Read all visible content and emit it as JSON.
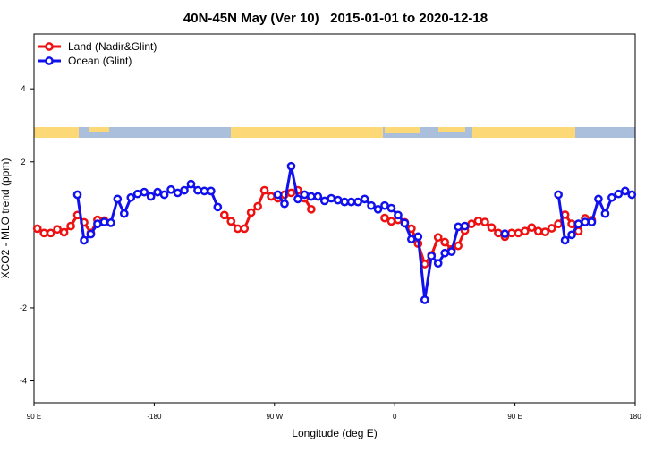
{
  "chart_data": {
    "type": "line",
    "title": "40N-45N May (Ver 10)   2015-01-01 to 2020-12-18",
    "x_label": "Longitude (deg E)",
    "y_label": "XCO2 - MLO trend (ppm)",
    "x": [
      -267.5,
      -262.5,
      -257.5,
      -252.5,
      -247.5,
      -242.5,
      -237.5,
      -232.5,
      -227.5,
      -222.5,
      -217.5,
      -212.5,
      -207.5,
      -202.5,
      -197.5,
      -192.5,
      -187.5,
      -182.5,
      -177.5,
      -172.5,
      -167.5,
      -162.5,
      -157.5,
      -152.5,
      -147.5,
      -142.5,
      -137.5,
      -132.5,
      -127.5,
      -122.5,
      -117.5,
      -112.5,
      -107.5,
      -102.5,
      -97.5,
      -92.5,
      -87.5,
      -82.5,
      -77.5,
      -72.5,
      -67.5,
      -62.5,
      -57.5,
      -52.5,
      -47.5,
      -42.5,
      -37.5,
      -32.5,
      -27.5,
      -22.5,
      -17.5,
      -12.5,
      -7.5,
      -2.5,
      2.5,
      7.5,
      12.5,
      17.5,
      22.5,
      27.5,
      32.5,
      37.5,
      42.5,
      47.5,
      52.5,
      57.5,
      62.5,
      67.5,
      72.5,
      77.5,
      82.5,
      87.5,
      92.5,
      97.5,
      102.5,
      107.5,
      112.5,
      117.5,
      122.5,
      127.5,
      132.5,
      137.5,
      142.5,
      147.5,
      152.5,
      157.5,
      162.5,
      167.5,
      172.5,
      177.5
    ],
    "series": [
      {
        "name": "Land (Nadir&Glint)",
        "color": "#ee1111",
        "values": [
          0.17,
          0.05,
          0.05,
          0.15,
          0.07,
          0.24,
          0.54,
          0.34,
          0.05,
          0.41,
          0.39,
          null,
          null,
          null,
          null,
          null,
          null,
          null,
          null,
          null,
          null,
          null,
          null,
          null,
          null,
          null,
          null,
          null,
          0.54,
          0.37,
          0.17,
          0.17,
          0.61,
          0.78,
          1.22,
          1.05,
          1.0,
          1.1,
          1.15,
          1.22,
          1.0,
          0.7,
          null,
          null,
          null,
          null,
          null,
          null,
          null,
          null,
          null,
          null,
          0.46,
          0.37,
          0.41,
          0.34,
          0.17,
          -0.24,
          -0.8,
          -0.56,
          -0.07,
          -0.2,
          -0.4,
          -0.3,
          0.12,
          0.3,
          0.38,
          0.35,
          0.2,
          0.05,
          -0.05,
          0.05,
          0.05,
          0.1,
          0.2,
          0.1,
          0.08,
          0.18,
          0.3,
          0.55,
          0.3,
          0.1,
          0.45,
          0.4,
          null,
          null,
          null,
          null,
          null,
          null
        ]
      },
      {
        "name": "Ocean (Glint)",
        "color": "#1111ee",
        "values": [
          null,
          null,
          null,
          null,
          null,
          null,
          1.1,
          -0.15,
          0.02,
          0.3,
          0.35,
          0.33,
          0.98,
          0.58,
          1.02,
          1.12,
          1.17,
          1.05,
          1.17,
          1.1,
          1.24,
          1.15,
          1.22,
          1.39,
          1.22,
          1.2,
          1.2,
          0.76,
          null,
          null,
          null,
          null,
          null,
          null,
          null,
          null,
          1.1,
          0.85,
          1.88,
          0.98,
          1.1,
          1.05,
          1.05,
          0.93,
          1.0,
          0.95,
          0.9,
          0.9,
          0.9,
          0.98,
          0.8,
          0.7,
          0.8,
          0.73,
          0.54,
          0.32,
          -0.12,
          -0.05,
          -1.78,
          -0.58,
          -0.78,
          -0.5,
          -0.46,
          0.22,
          0.24,
          null,
          null,
          null,
          null,
          null,
          0.03,
          null,
          null,
          null,
          null,
          null,
          null,
          null,
          1.1,
          -0.15,
          0.0,
          0.3,
          0.35,
          0.35,
          0.98,
          0.58,
          1.02,
          1.12,
          1.2,
          1.1
        ]
      }
    ],
    "xlim": [
      -270,
      180
    ],
    "xticks": [
      {
        "value": -270,
        "label": "90 E"
      },
      -180,
      {
        "value": -90,
        "label": "90 W"
      },
      0,
      {
        "value": 90,
        "label": "90 E"
      },
      180
    ],
    "ylim": [
      -4.6,
      5.5
    ],
    "yticks": [
      -4,
      -2,
      2,
      4
    ],
    "legend": "topleft"
  }
}
